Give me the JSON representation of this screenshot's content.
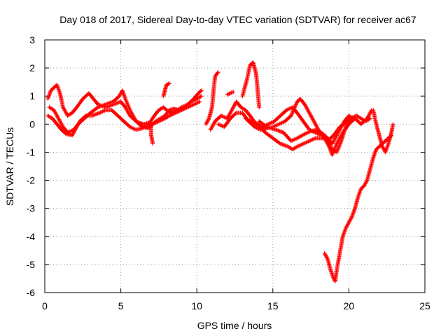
{
  "chart_data": {
    "type": "scatter",
    "title": "Day 018 of 2017, Sidereal Day-to-day VTEC variation (SDTVAR) for receiver ac67",
    "xlabel": "GPS time / hours",
    "ylabel": "SDTVAR / TECUs",
    "xlim": [
      0,
      25
    ],
    "ylim": [
      -6,
      3
    ],
    "xticks": [
      0,
      5,
      10,
      15,
      20,
      25
    ],
    "yticks": [
      3,
      2,
      1,
      0,
      -1,
      -2,
      -3,
      -4,
      -5,
      -6
    ],
    "grid": true,
    "legend": "none",
    "marker": "+",
    "series": [
      {
        "name": "SDTVAR",
        "color": "#ff0000",
        "tracks": [
          [
            [
              0.2,
              0.9
            ],
            [
              0.4,
              1.2
            ],
            [
              0.6,
              1.3
            ],
            [
              0.8,
              1.4
            ],
            [
              1.0,
              1.1
            ],
            [
              1.2,
              0.6
            ],
            [
              1.5,
              0.3
            ],
            [
              1.8,
              0.4
            ],
            [
              2.1,
              0.6
            ],
            [
              2.5,
              0.9
            ],
            [
              2.9,
              1.1
            ],
            [
              3.2,
              0.9
            ],
            [
              3.5,
              0.7
            ],
            [
              4.0,
              0.6
            ],
            [
              4.5,
              0.7
            ],
            [
              5.0,
              0.8
            ],
            [
              5.3,
              0.6
            ],
            [
              5.6,
              0.3
            ],
            [
              5.9,
              0.15
            ],
            [
              6.2,
              0.05
            ],
            [
              6.5,
              0.0
            ],
            [
              6.9,
              0.05
            ],
            [
              7.2,
              0.3
            ],
            [
              7.5,
              0.5
            ],
            [
              7.8,
              0.6
            ],
            [
              8.0,
              0.5
            ],
            [
              8.3,
              0.4
            ],
            [
              8.7,
              0.5
            ],
            [
              9.0,
              0.6
            ],
            [
              9.4,
              0.7
            ],
            [
              9.8,
              0.9
            ],
            [
              10.1,
              1.1
            ],
            [
              10.3,
              1.2
            ]
          ],
          [
            [
              0.3,
              0.6
            ],
            [
              0.6,
              0.5
            ],
            [
              0.9,
              0.2
            ],
            [
              1.2,
              -0.1
            ],
            [
              1.5,
              -0.3
            ],
            [
              1.9,
              -0.2
            ],
            [
              2.2,
              0.0
            ],
            [
              2.6,
              0.2
            ],
            [
              3.0,
              0.4
            ],
            [
              3.5,
              0.6
            ],
            [
              4.0,
              0.7
            ],
            [
              4.5,
              0.8
            ],
            [
              4.9,
              1.0
            ],
            [
              5.1,
              1.2
            ],
            [
              5.3,
              0.9
            ],
            [
              5.6,
              0.5
            ],
            [
              6.0,
              0.1
            ],
            [
              6.4,
              -0.1
            ],
            [
              6.8,
              -0.15
            ],
            [
              7.0,
              -0.05
            ],
            [
              7.3,
              0.1
            ],
            [
              7.6,
              0.2
            ],
            [
              7.9,
              0.3
            ],
            [
              8.2,
              0.5
            ],
            [
              8.5,
              0.55
            ],
            [
              8.8,
              0.5
            ],
            [
              9.2,
              0.6
            ],
            [
              9.6,
              0.8
            ],
            [
              10.0,
              0.9
            ],
            [
              10.3,
              1.0
            ]
          ],
          [
            [
              0.2,
              0.3
            ],
            [
              0.5,
              0.2
            ],
            [
              0.8,
              0.0
            ],
            [
              1.1,
              -0.2
            ],
            [
              1.4,
              -0.35
            ],
            [
              1.8,
              -0.4
            ],
            [
              2.0,
              -0.2
            ],
            [
              2.3,
              0.1
            ],
            [
              2.7,
              0.3
            ],
            [
              3.1,
              0.3
            ],
            [
              3.6,
              0.4
            ],
            [
              4.0,
              0.5
            ],
            [
              4.4,
              0.5
            ],
            [
              4.8,
              0.3
            ],
            [
              5.2,
              0.1
            ],
            [
              5.6,
              -0.1
            ],
            [
              6.0,
              -0.2
            ],
            [
              6.4,
              -0.15
            ],
            [
              6.8,
              0.0
            ],
            [
              7.1,
              0.0
            ],
            [
              7.5,
              0.1
            ],
            [
              7.9,
              0.2
            ],
            [
              8.2,
              0.3
            ],
            [
              8.6,
              0.4
            ],
            [
              9.0,
              0.5
            ],
            [
              9.4,
              0.6
            ],
            [
              9.8,
              0.7
            ],
            [
              10.2,
              0.8
            ]
          ],
          [
            [
              7.0,
              -0.1
            ],
            [
              7.0,
              -0.4
            ],
            [
              7.1,
              -0.7
            ]
          ],
          [
            [
              7.8,
              1.0
            ],
            [
              7.9,
              1.2
            ],
            [
              8.0,
              1.4
            ],
            [
              8.2,
              1.45
            ]
          ],
          [
            [
              10.6,
              0.0
            ],
            [
              10.8,
              0.2
            ],
            [
              11.0,
              0.6
            ],
            [
              11.1,
              1.2
            ],
            [
              11.2,
              1.7
            ],
            [
              11.4,
              1.85
            ]
          ],
          [
            [
              10.9,
              -0.2
            ],
            [
              11.2,
              0.1
            ],
            [
              11.6,
              0.3
            ],
            [
              12.0,
              0.2
            ],
            [
              12.3,
              0.5
            ],
            [
              12.6,
              0.8
            ],
            [
              12.9,
              0.6
            ],
            [
              13.2,
              0.5
            ],
            [
              13.5,
              0.3
            ],
            [
              13.9,
              0.0
            ],
            [
              14.3,
              -0.1
            ],
            [
              14.7,
              0.0
            ],
            [
              15.1,
              0.1
            ],
            [
              15.5,
              0.3
            ],
            [
              15.9,
              0.5
            ],
            [
              16.3,
              0.6
            ],
            [
              16.6,
              0.4
            ],
            [
              17.0,
              0.1
            ],
            [
              17.4,
              -0.2
            ],
            [
              17.8,
              -0.3
            ],
            [
              18.2,
              -0.4
            ],
            [
              18.6,
              -0.6
            ],
            [
              18.9,
              -0.9
            ],
            [
              19.2,
              -1.0
            ],
            [
              19.5,
              -0.6
            ],
            [
              19.8,
              -0.1
            ],
            [
              20.1,
              0.2
            ],
            [
              20.5,
              0.3
            ],
            [
              20.8,
              0.2
            ],
            [
              21.1,
              0.1
            ],
            [
              21.4,
              0.2
            ]
          ],
          [
            [
              11.4,
              0.0
            ],
            [
              11.8,
              -0.1
            ],
            [
              12.2,
              0.2
            ],
            [
              12.6,
              0.4
            ],
            [
              13.0,
              0.4
            ],
            [
              13.4,
              0.1
            ],
            [
              13.8,
              -0.1
            ],
            [
              14.2,
              -0.2
            ],
            [
              14.6,
              -0.15
            ],
            [
              15.0,
              -0.1
            ],
            [
              15.4,
              0.0
            ],
            [
              15.8,
              0.1
            ],
            [
              16.2,
              0.3
            ],
            [
              16.6,
              0.8
            ],
            [
              16.8,
              0.9
            ],
            [
              17.1,
              0.7
            ],
            [
              17.4,
              0.4
            ],
            [
              17.8,
              0.0
            ],
            [
              18.1,
              -0.3
            ],
            [
              18.4,
              -0.5
            ],
            [
              18.7,
              -0.8
            ],
            [
              18.9,
              -1.1
            ],
            [
              19.2,
              -0.7
            ],
            [
              19.6,
              -0.3
            ],
            [
              20.0,
              0.0
            ],
            [
              20.4,
              0.2
            ],
            [
              20.8,
              0.0
            ],
            [
              21.2,
              0.2
            ],
            [
              21.5,
              0.5
            ]
          ],
          [
            [
              13.2,
              0.2
            ],
            [
              13.6,
              0.1
            ],
            [
              14.0,
              0.0
            ],
            [
              14.5,
              -0.3
            ],
            [
              15.0,
              -0.5
            ],
            [
              15.5,
              -0.7
            ],
            [
              16.0,
              -0.8
            ],
            [
              16.3,
              -0.9
            ],
            [
              16.6,
              -0.8
            ],
            [
              17.0,
              -0.7
            ],
            [
              17.4,
              -0.6
            ],
            [
              17.8,
              -0.5
            ],
            [
              18.2,
              -0.5
            ],
            [
              18.6,
              -0.5
            ],
            [
              18.9,
              -0.7
            ],
            [
              19.1,
              -0.5
            ],
            [
              19.4,
              -0.2
            ],
            [
              19.7,
              0.1
            ],
            [
              20.0,
              0.3
            ],
            [
              20.3,
              0.2
            ]
          ],
          [
            [
              14.1,
              0.1
            ],
            [
              14.6,
              -0.1
            ],
            [
              15.2,
              -0.2
            ],
            [
              15.7,
              -0.3
            ],
            [
              16.2,
              -0.6
            ],
            [
              16.6,
              -0.5
            ],
            [
              17.1,
              -0.35
            ],
            [
              17.5,
              -0.25
            ],
            [
              17.9,
              -0.2
            ],
            [
              18.3,
              -0.35
            ],
            [
              18.7,
              -0.55
            ],
            [
              19.0,
              -0.4
            ],
            [
              19.4,
              -0.1
            ],
            [
              19.8,
              0.05
            ],
            [
              20.2,
              0.2
            ]
          ],
          [
            [
              13.0,
              1.0
            ],
            [
              13.3,
              1.6
            ],
            [
              13.5,
              2.1
            ],
            [
              13.7,
              2.2
            ],
            [
              13.9,
              1.8
            ],
            [
              14.0,
              1.2
            ],
            [
              14.1,
              0.6
            ]
          ],
          [
            [
              12.0,
              1.05
            ],
            [
              12.2,
              1.1
            ],
            [
              12.4,
              1.15
            ]
          ],
          [
            [
              18.4,
              -4.6
            ],
            [
              18.6,
              -4.8
            ],
            [
              18.8,
              -5.2
            ],
            [
              19.0,
              -5.5
            ],
            [
              19.1,
              -5.6
            ],
            [
              19.2,
              -5.2
            ],
            [
              19.4,
              -4.6
            ],
            [
              19.6,
              -4.0
            ],
            [
              19.8,
              -3.7
            ],
            [
              20.0,
              -3.5
            ],
            [
              20.2,
              -3.3
            ],
            [
              20.4,
              -3.0
            ],
            [
              20.6,
              -2.6
            ],
            [
              20.8,
              -2.3
            ],
            [
              21.0,
              -2.2
            ],
            [
              21.2,
              -2.0
            ],
            [
              21.4,
              -1.6
            ],
            [
              21.6,
              -1.2
            ],
            [
              21.8,
              -0.9
            ],
            [
              22.0,
              -0.8
            ],
            [
              22.2,
              -0.7
            ],
            [
              22.4,
              -0.6
            ],
            [
              22.6,
              -0.5
            ],
            [
              22.8,
              -0.4
            ]
          ],
          [
            [
              21.6,
              0.5
            ],
            [
              21.8,
              0.0
            ],
            [
              22.0,
              -0.4
            ],
            [
              22.2,
              -0.8
            ],
            [
              22.4,
              -1.0
            ],
            [
              22.6,
              -0.7
            ],
            [
              22.8,
              -0.3
            ],
            [
              22.9,
              0.0
            ]
          ]
        ]
      }
    ]
  }
}
